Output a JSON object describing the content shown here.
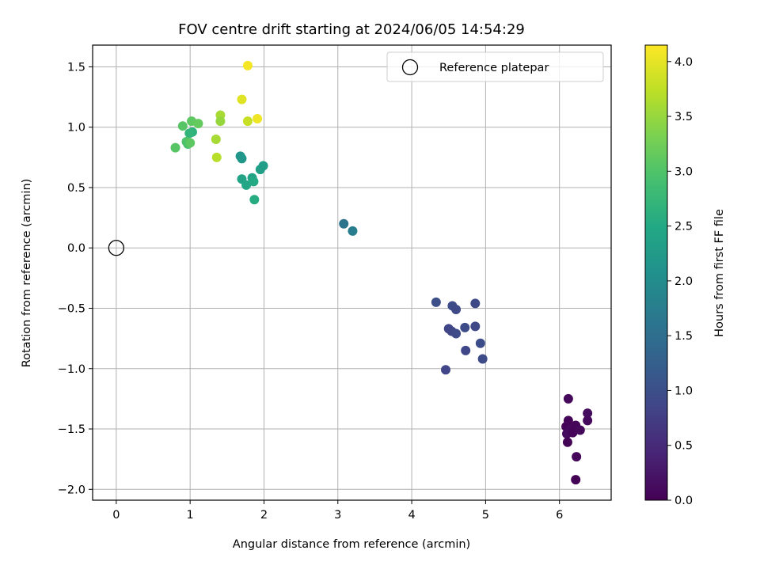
{
  "chart_data": {
    "type": "scatter",
    "title": "FOV centre drift starting at 2024/06/05 14:54:29",
    "xlabel": "Angular distance from reference (arcmin)",
    "ylabel": "Rotation from reference (arcmin)",
    "xlim": [
      -0.32,
      6.7
    ],
    "ylim": [
      -2.09,
      1.68
    ],
    "x_ticks": [
      0,
      1,
      2,
      3,
      4,
      5,
      6
    ],
    "x_tick_labels": [
      "0",
      "1",
      "2",
      "3",
      "4",
      "5",
      "6"
    ],
    "y_ticks": [
      1.5,
      1.0,
      0.5,
      0.0,
      -0.5,
      -1.0,
      -1.5,
      -2.0
    ],
    "y_tick_labels": [
      "1.5",
      "1.0",
      "0.5",
      "0.0",
      "−0.5",
      "−1.0",
      "−1.5",
      "−2.0"
    ],
    "grid": true,
    "legend": {
      "position": "upper right",
      "entries": [
        "Reference platepar"
      ]
    },
    "reference_point": {
      "x": 0,
      "y": 0,
      "label": "Reference platepar"
    },
    "colorbar": {
      "label": "Hours from first FF file",
      "colormap": "viridis",
      "range": [
        0.0,
        4.15
      ],
      "ticks": [
        0.0,
        0.5,
        1.0,
        1.5,
        2.0,
        2.5,
        3.0,
        3.5,
        4.0
      ],
      "tick_labels": [
        "0.0",
        "0.5",
        "1.0",
        "1.5",
        "2.0",
        "2.5",
        "3.0",
        "3.5",
        "4.0"
      ]
    },
    "points": [
      {
        "x": 6.12,
        "y": -1.25,
        "c": 0.08
      },
      {
        "x": 6.09,
        "y": -1.48,
        "c": 0.02
      },
      {
        "x": 6.12,
        "y": -1.43,
        "c": 0.05
      },
      {
        "x": 6.15,
        "y": -1.5,
        "c": 0.1
      },
      {
        "x": 6.22,
        "y": -1.47,
        "c": 0.06
      },
      {
        "x": 6.1,
        "y": -1.54,
        "c": 0.12
      },
      {
        "x": 6.18,
        "y": -1.53,
        "c": 0.04
      },
      {
        "x": 6.28,
        "y": -1.51,
        "c": 0.09
      },
      {
        "x": 6.11,
        "y": -1.61,
        "c": 0.03
      },
      {
        "x": 6.23,
        "y": -1.73,
        "c": 0.07
      },
      {
        "x": 6.22,
        "y": -1.92,
        "c": 0.01
      },
      {
        "x": 6.38,
        "y": -1.37,
        "c": 0.14
      },
      {
        "x": 6.38,
        "y": -1.43,
        "c": 0.11
      },
      {
        "x": 4.33,
        "y": -0.45,
        "c": 1.0
      },
      {
        "x": 4.55,
        "y": -0.48,
        "c": 0.95
      },
      {
        "x": 4.6,
        "y": -0.51,
        "c": 0.9
      },
      {
        "x": 4.86,
        "y": -0.46,
        "c": 0.92
      },
      {
        "x": 4.5,
        "y": -0.67,
        "c": 0.85
      },
      {
        "x": 4.54,
        "y": -0.69,
        "c": 0.88
      },
      {
        "x": 4.6,
        "y": -0.71,
        "c": 0.93
      },
      {
        "x": 4.72,
        "y": -0.66,
        "c": 0.96
      },
      {
        "x": 4.86,
        "y": -0.65,
        "c": 0.9
      },
      {
        "x": 4.93,
        "y": -0.79,
        "c": 0.97
      },
      {
        "x": 4.73,
        "y": -0.85,
        "c": 0.87
      },
      {
        "x": 4.96,
        "y": -0.92,
        "c": 0.94
      },
      {
        "x": 4.46,
        "y": -1.01,
        "c": 0.86
      },
      {
        "x": 3.08,
        "y": 0.2,
        "c": 1.6
      },
      {
        "x": 3.2,
        "y": 0.14,
        "c": 1.75
      },
      {
        "x": 1.68,
        "y": 0.76,
        "c": 2.15
      },
      {
        "x": 1.7,
        "y": 0.74,
        "c": 2.2
      },
      {
        "x": 1.95,
        "y": 0.65,
        "c": 2.35
      },
      {
        "x": 1.99,
        "y": 0.68,
        "c": 2.3
      },
      {
        "x": 1.7,
        "y": 0.57,
        "c": 2.4
      },
      {
        "x": 1.76,
        "y": 0.52,
        "c": 2.45
      },
      {
        "x": 1.84,
        "y": 0.58,
        "c": 2.4
      },
      {
        "x": 1.86,
        "y": 0.55,
        "c": 2.5
      },
      {
        "x": 1.87,
        "y": 0.4,
        "c": 2.55
      },
      {
        "x": 1.03,
        "y": 0.96,
        "c": 2.65
      },
      {
        "x": 0.99,
        "y": 0.95,
        "c": 2.7
      },
      {
        "x": 0.9,
        "y": 1.01,
        "c": 3.05
      },
      {
        "x": 1.02,
        "y": 1.05,
        "c": 3.1
      },
      {
        "x": 1.11,
        "y": 1.03,
        "c": 3.15
      },
      {
        "x": 0.95,
        "y": 0.88,
        "c": 3.0
      },
      {
        "x": 0.97,
        "y": 0.86,
        "c": 2.95
      },
      {
        "x": 1.0,
        "y": 0.87,
        "c": 3.1
      },
      {
        "x": 0.8,
        "y": 0.83,
        "c": 3.05
      },
      {
        "x": 1.35,
        "y": 0.9,
        "c": 3.6
      },
      {
        "x": 1.36,
        "y": 0.75,
        "c": 3.7
      },
      {
        "x": 1.41,
        "y": 1.1,
        "c": 3.6
      },
      {
        "x": 1.41,
        "y": 1.05,
        "c": 3.5
      },
      {
        "x": 1.78,
        "y": 1.05,
        "c": 3.8
      },
      {
        "x": 1.7,
        "y": 1.23,
        "c": 3.95
      },
      {
        "x": 1.91,
        "y": 1.07,
        "c": 4.05
      },
      {
        "x": 1.78,
        "y": 1.51,
        "c": 4.1
      }
    ]
  }
}
